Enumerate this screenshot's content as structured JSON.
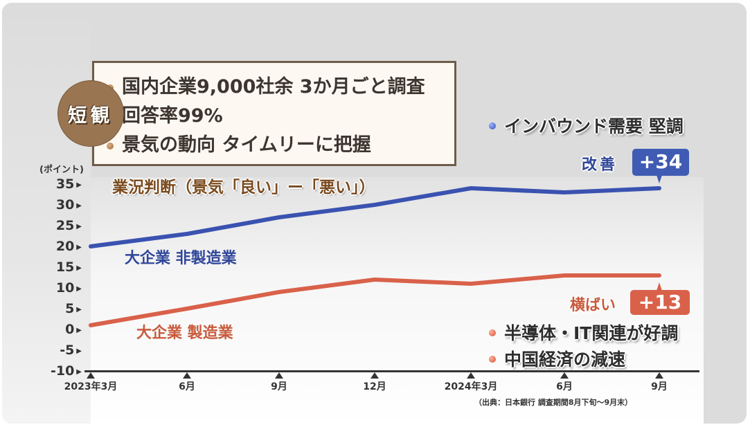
{
  "info_box": {
    "badge": "短観",
    "bullets": [
      "国内企業9,000社余 3か月ごと調査",
      "回答率99%",
      "景気の動向 タイムリーに把握"
    ]
  },
  "chart_data": {
    "type": "line",
    "title": "業況判断（景気「良い」ー「悪い」）",
    "ylabel": "(ポイント)",
    "xlabel": "",
    "ylim": [
      -10,
      35
    ],
    "yticks": [
      35,
      30,
      25,
      20,
      15,
      10,
      5,
      0,
      -5,
      -10
    ],
    "categories": [
      "2023年3月",
      "6月",
      "9月",
      "12月",
      "2024年3月",
      "6月",
      "9月"
    ],
    "series": [
      {
        "name": "大企業 非製造業",
        "color": "#3a52b0",
        "values": [
          20,
          23,
          27,
          30,
          34,
          33,
          34
        ]
      },
      {
        "name": "大企業 製造業",
        "color": "#d9614a",
        "values": [
          1,
          5,
          9,
          12,
          11,
          13,
          13
        ]
      }
    ],
    "annotations": {
      "non_manufacturing": {
        "change_word": "改善",
        "value": "+34",
        "note": "インバウンド需要 堅調"
      },
      "manufacturing": {
        "change_word": "横ばい",
        "value": "+13",
        "notes": [
          "半導体・IT関連が好調",
          "中国経済の減速"
        ]
      }
    },
    "source": "（出典：日本銀行 調査期間8月下旬～9月末）",
    "grid": false,
    "legend": "inline labels"
  }
}
